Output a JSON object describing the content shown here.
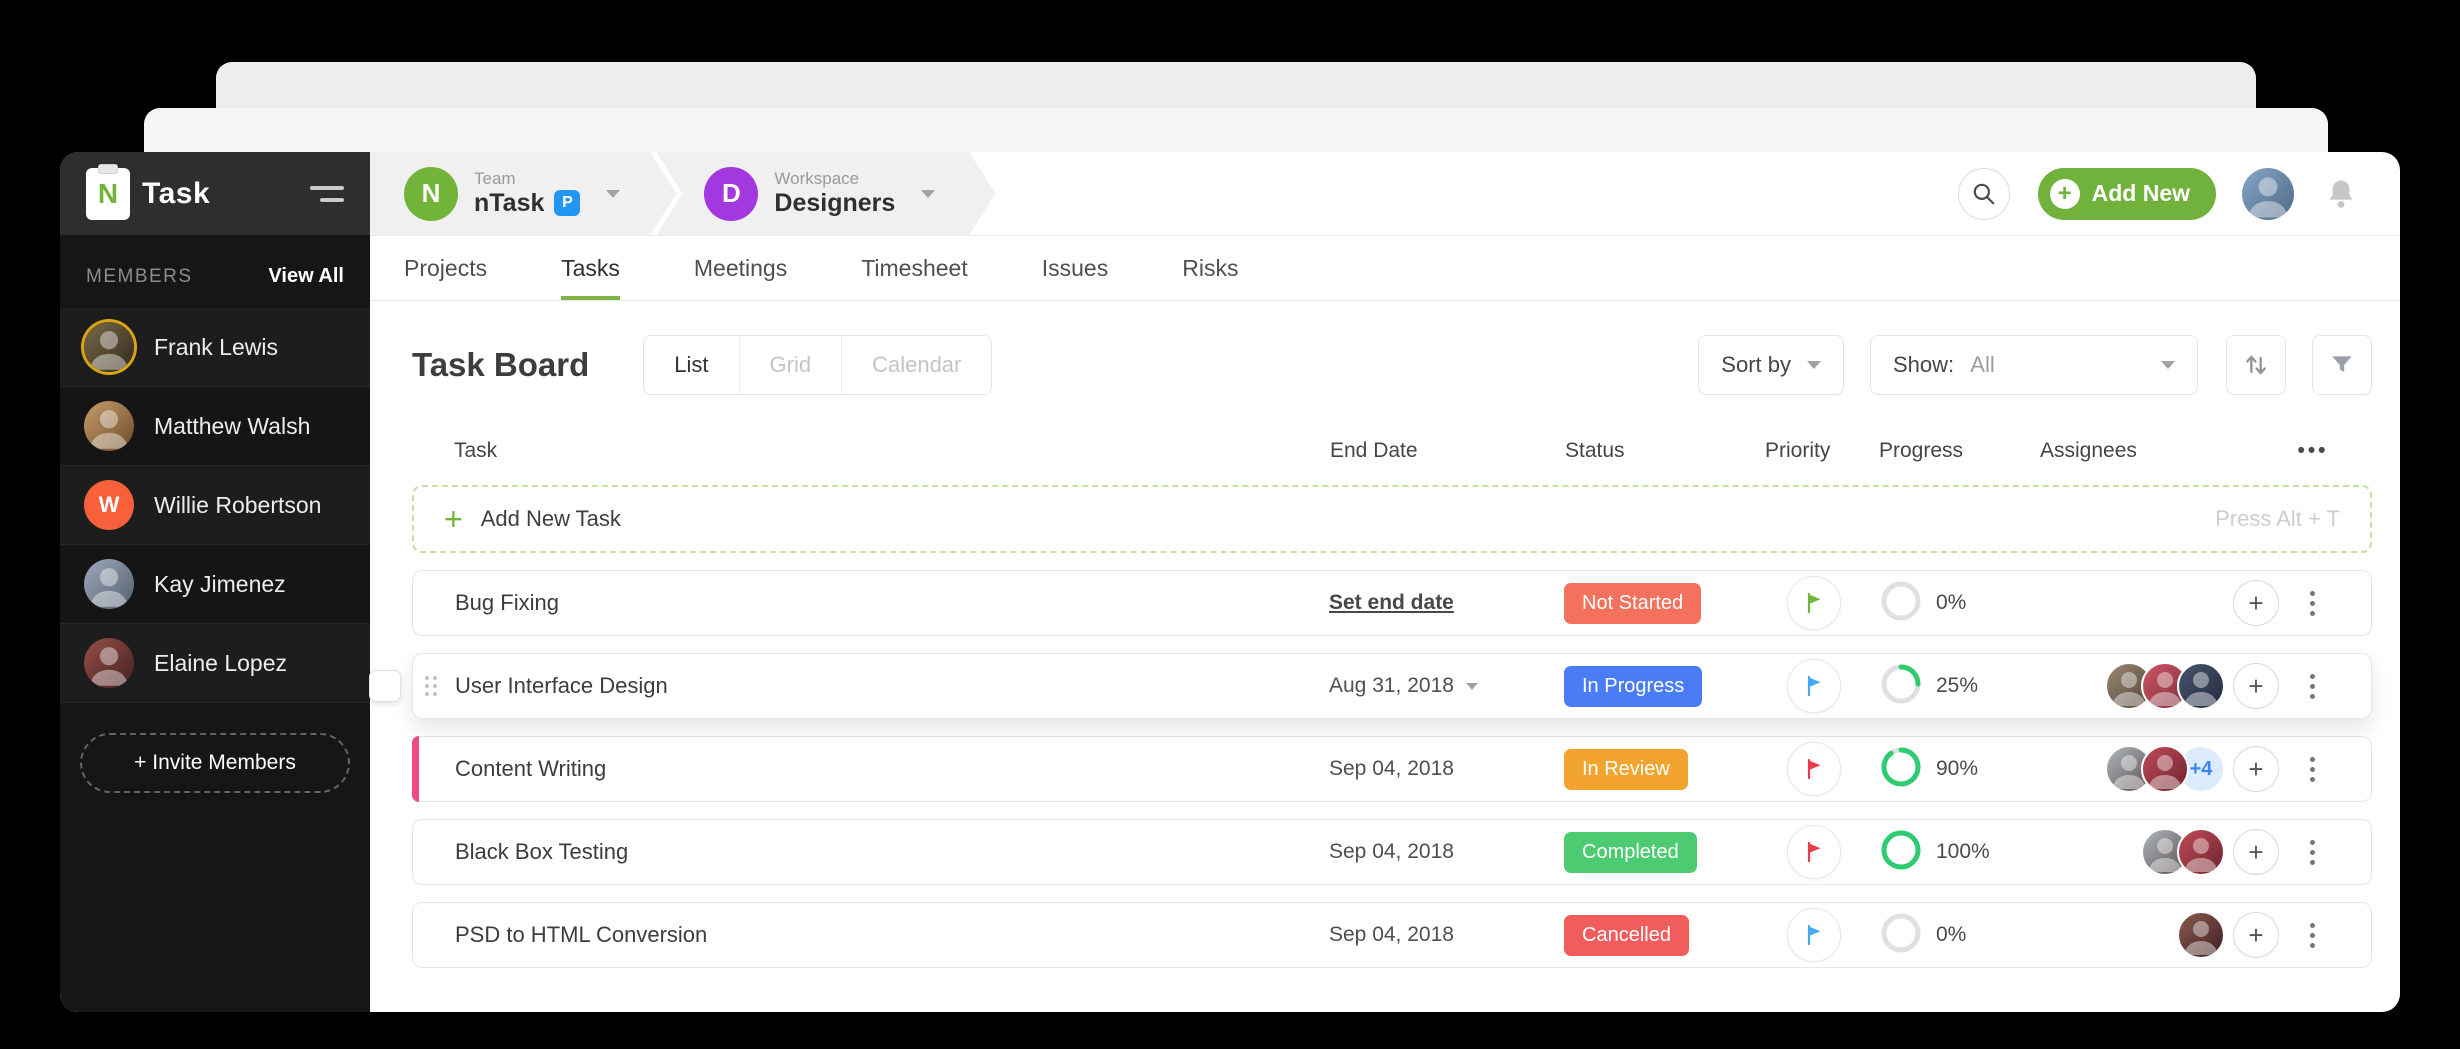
{
  "icons": {
    "caret": "",
    "plus": "+",
    "more": "•••"
  },
  "sidebar": {
    "logo_text": "Task",
    "members_label": "MEMBERS",
    "view_all_label": "View All",
    "invite_label": "+ Invite Members",
    "members": [
      {
        "name": "Frank Lewis",
        "avatar": "s1",
        "ring": "#d9a514"
      },
      {
        "name": "Matthew Walsh",
        "avatar": "s2"
      },
      {
        "name": "Willie Robertson",
        "avatar": "initial",
        "initial": "W",
        "color": "#f7603b"
      },
      {
        "name": "Kay Jimenez",
        "avatar": "s3"
      },
      {
        "name": "Elaine Lopez",
        "avatar": "s4"
      }
    ]
  },
  "header": {
    "team": {
      "label": "Team",
      "name": "nTask",
      "badge": "P",
      "initial": "N",
      "color": "#72b43a",
      "badge_color": "#2196f3"
    },
    "workspace": {
      "label": "Workspace",
      "name": "Designers",
      "initial": "D",
      "color": "#a238dd"
    },
    "add_new_label": "Add New"
  },
  "tabs": {
    "items": [
      "Projects",
      "Tasks",
      "Meetings",
      "Timesheet",
      "Issues",
      "Risks"
    ],
    "active": "Tasks"
  },
  "toolbar": {
    "title": "Task Board",
    "views": [
      "List",
      "Grid",
      "Calendar"
    ],
    "active_view": "List",
    "sort_label": "Sort by",
    "show_label": "Show:",
    "show_value": "All"
  },
  "table": {
    "columns": [
      "Task",
      "End Date",
      "Status",
      "Priority",
      "Progress",
      "Assignees"
    ],
    "more_label": "•••",
    "add_task_label": "Add New Task",
    "add_task_hint": "Press Alt + T",
    "progress_color": "#2ecc71",
    "rows": [
      {
        "name": "Bug Fixing",
        "end_date": "Set end date",
        "end_underline": true,
        "status": "Not Started",
        "status_color": "#f4715e",
        "flag_color": "#6db53b",
        "progress": 0,
        "progress_label": "0%",
        "assignees": []
      },
      {
        "name": "User Interface Design",
        "end_date": "Aug 31, 2018",
        "end_caret": true,
        "status": "In Progress",
        "status_color": "#4a7cf6",
        "flag_color": "#45a9f5",
        "progress": 25,
        "progress_label": "25%",
        "assignees": [
          "p1",
          "p2",
          "p3"
        ],
        "hovered": true
      },
      {
        "name": "Content Writing",
        "end_date": "Sep 04, 2018",
        "status": "In Review",
        "status_color": "#f3a42e",
        "flag_color": "#e73c4e",
        "progress": 90,
        "progress_label": "90%",
        "assignees": [
          "p4",
          "p5"
        ],
        "overflow": "+4",
        "accent": "#f04a7f"
      },
      {
        "name": "Black Box Testing",
        "end_date": "Sep 04, 2018",
        "status": "Completed",
        "status_color": "#4dcb72",
        "flag_color": "#e73c4e",
        "progress": 100,
        "progress_label": "100%",
        "assignees": [
          "p4",
          "p5"
        ]
      },
      {
        "name": "PSD to HTML Conversion",
        "end_date": "Sep 04, 2018",
        "status": "Cancelled",
        "status_color": "#f15d5d",
        "flag_color": "#45a9f5",
        "progress": 0,
        "progress_label": "0%",
        "assignees": [
          "p6"
        ]
      }
    ]
  },
  "avatars": {
    "p1": [
      "#9b8a72",
      "#4e4236"
    ],
    "p2": [
      "#d05666",
      "#7c2e3c"
    ],
    "p3": [
      "#47556e",
      "#232c3e"
    ],
    "p4": [
      "#aeb6bd",
      "#5d5150"
    ],
    "p5": [
      "#c04a57",
      "#6e2430"
    ],
    "p6": [
      "#8c5a50",
      "#402023"
    ],
    "user": [
      "#88a7c6",
      "#4c6886"
    ],
    "s1": [
      "#7a6a4a",
      "#332a1c"
    ],
    "s2": [
      "#c79e6b",
      "#6b4b28"
    ],
    "s3": [
      "#9fabbc",
      "#525f6e"
    ],
    "s4": [
      "#96504a",
      "#45201e"
    ]
  }
}
